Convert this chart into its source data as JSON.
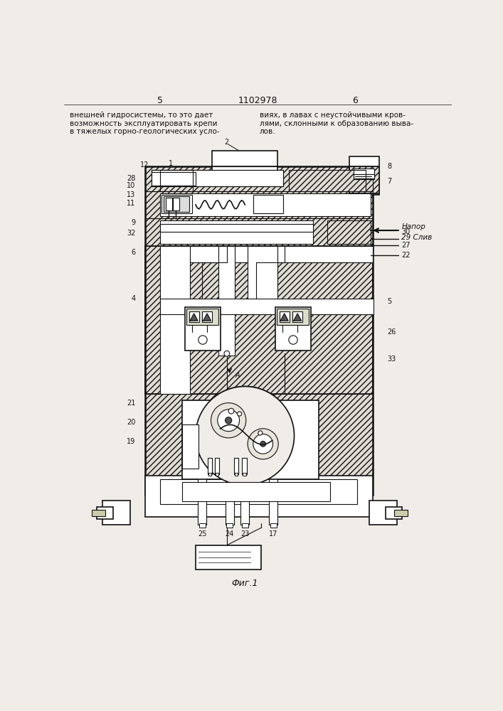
{
  "title": "1102978",
  "page_left": "5",
  "page_right": "6",
  "text_left": "внешней гидросистемы, то это дает\nвозможность эксплуатировать крепи\nв тяжелых горно-геологических усло-",
  "text_right": "виях, в лавах с неустойчивыми кров-\nлями, склонными к образованию выва-\nлов.",
  "fig_label": "Фиг.1",
  "bg_color": "#f0ede8",
  "line_color": "#111111",
  "hatch_color": "#333333"
}
